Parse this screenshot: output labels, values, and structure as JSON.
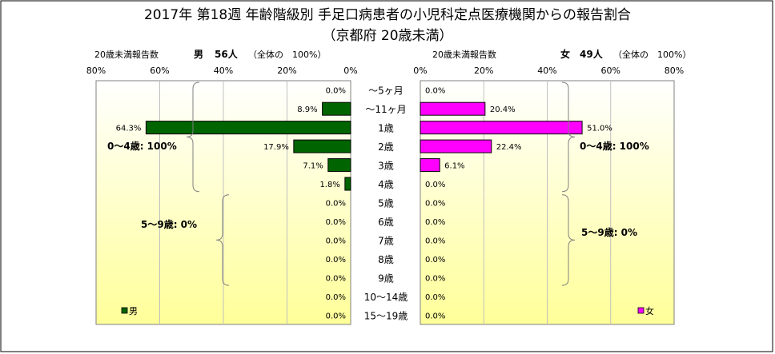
{
  "title_line1": "2017年 第18週 年齢階級別 手足口病患者の小児科定点医療機関からの報告割合",
  "title_line2": "（京都府 20歳未満）",
  "colors": {
    "male": "#006400",
    "female": "#FF00FF",
    "bar_edge": "#000000",
    "plot_top": "#ffffff",
    "plot_bottom": "#ffff99",
    "grid": "#c0c0c0",
    "bracket": "#808080"
  },
  "chart_data": [
    {
      "type": "bar",
      "orientation": "horizontal",
      "direction": "right-to-left",
      "header_left": "20歳未満報告数",
      "header_sex": "男",
      "header_count": "56人",
      "header_total": "（全体の　100%）",
      "xlim": [
        0,
        80
      ],
      "xticks": [
        "80%",
        "60%",
        "40%",
        "20%",
        "0%"
      ],
      "legend": "男",
      "legend_position": "bottom-left",
      "grid": true,
      "series": [
        {
          "name": "男",
          "values": [
            0.0,
            8.9,
            64.3,
            17.9,
            7.1,
            1.8,
            0.0,
            0.0,
            0.0,
            0.0,
            0.0,
            0.0,
            0.0
          ]
        }
      ],
      "labels": [
        "0.0%",
        "8.9%",
        "64.3%",
        "17.9%",
        "7.1%",
        "1.8%",
        "0.0%",
        "0.0%",
        "0.0%",
        "0.0%",
        "0.0%",
        "0.0%",
        "0.0%"
      ],
      "annotations": [
        "0～4歳: 100%",
        "5～9歳: 0%"
      ]
    },
    {
      "type": "bar",
      "orientation": "horizontal",
      "direction": "left-to-right",
      "header_left": "20歳未満報告数",
      "header_sex": "女",
      "header_count": "49人",
      "header_total": "（全体の　100%）",
      "xlim": [
        0,
        80
      ],
      "xticks": [
        "0%",
        "20%",
        "40%",
        "60%",
        "80%"
      ],
      "legend": "女",
      "legend_position": "bottom-right",
      "grid": true,
      "series": [
        {
          "name": "女",
          "values": [
            0.0,
            20.4,
            51.0,
            22.4,
            6.1,
            0.0,
            0.0,
            0.0,
            0.0,
            0.0,
            0.0,
            0.0,
            0.0
          ]
        }
      ],
      "labels": [
        "0.0%",
        "20.4%",
        "51.0%",
        "22.4%",
        "6.1%",
        "0.0%",
        "0.0%",
        "0.0%",
        "0.0%",
        "0.0%",
        "0.0%",
        "0.0%",
        "0.0%"
      ],
      "annotations": [
        "0～4歳: 100%",
        "5～9歳: 0%"
      ]
    }
  ],
  "categories": [
    "～5ヶ月",
    "～11ヶ月",
    "1歳",
    "2歳",
    "3歳",
    "4歳",
    "5歳",
    "6歳",
    "7歳",
    "8歳",
    "9歳",
    "10～14歳",
    "15～19歳"
  ]
}
